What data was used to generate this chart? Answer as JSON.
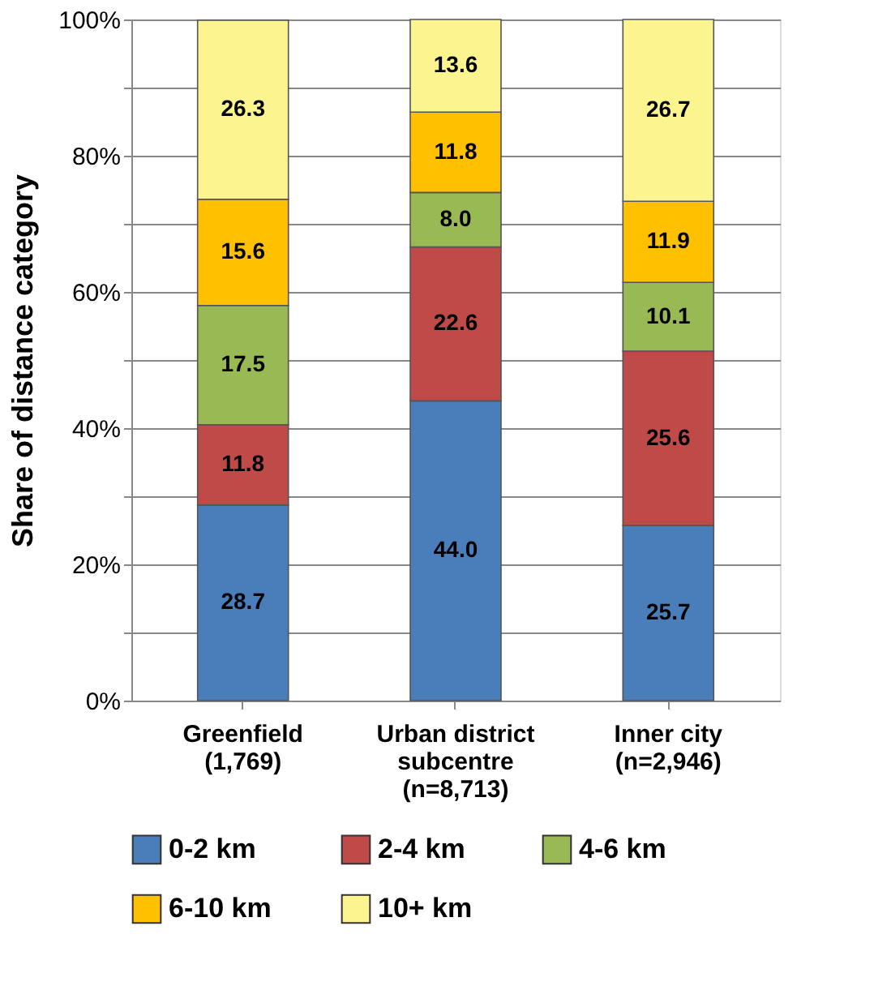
{
  "chart_data": {
    "type": "bar",
    "stacked": true,
    "ylabel": "Share of distance category",
    "categories": [
      "Greenfield\n(1,769)",
      "Urban district\nsubcentre\n(n=8,713)",
      "Inner city\n(n=2,946)"
    ],
    "series": [
      {
        "name": "0-2 km",
        "color": "#4a7ebb",
        "values": [
          28.7,
          44.0,
          25.7
        ],
        "value_labels": [
          "28.7",
          "44.0",
          "25.7"
        ]
      },
      {
        "name": "2-4 km",
        "color": "#be4b48",
        "values": [
          11.8,
          22.6,
          25.6
        ],
        "value_labels": [
          "11.8",
          "22.6",
          "25.6"
        ]
      },
      {
        "name": "4-6 km",
        "color": "#98b954",
        "values": [
          17.5,
          8.0,
          10.1
        ],
        "value_labels": [
          "17.5",
          "8.0",
          "10.1"
        ]
      },
      {
        "name": "6-10 km",
        "color": "#ffc000",
        "values": [
          15.6,
          11.8,
          11.9
        ],
        "value_labels": [
          "15.6",
          "11.8",
          "11.9"
        ]
      },
      {
        "name": "10+ km",
        "color": "#fbf48f",
        "values": [
          26.3,
          13.6,
          26.7
        ],
        "value_labels": [
          "26.3",
          "13.6",
          "26.7"
        ]
      }
    ],
    "ylim": [
      0,
      100
    ],
    "yticks": [
      {
        "value": 0,
        "label": "0%"
      },
      {
        "value": 10,
        "label": null
      },
      {
        "value": 20,
        "label": "20%"
      },
      {
        "value": 30,
        "label": null
      },
      {
        "value": 40,
        "label": "40%"
      },
      {
        "value": 50,
        "label": null
      },
      {
        "value": 60,
        "label": "60%"
      },
      {
        "value": 70,
        "label": null
      },
      {
        "value": 80,
        "label": "80%"
      },
      {
        "value": 90,
        "label": null
      },
      {
        "value": 100,
        "label": "100%"
      }
    ],
    "grid": "y",
    "legend": "bottom"
  }
}
